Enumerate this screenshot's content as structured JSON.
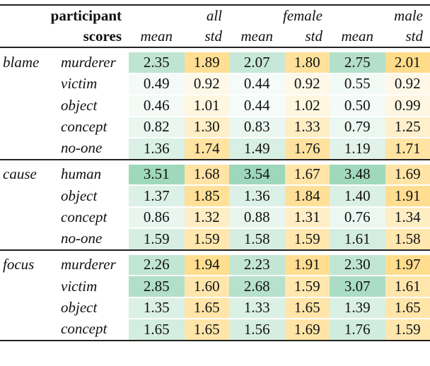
{
  "header": {
    "row1_label": "participant",
    "row2_label": "scores",
    "groups": [
      "all",
      "female",
      "male"
    ],
    "stat_labels": [
      "mean",
      "std"
    ]
  },
  "colors": {
    "mean_scale": "#8fd1b0",
    "std_scale": "#ffdc8a"
  },
  "sections": [
    {
      "label": "blame",
      "rows": [
        {
          "item": "murderer",
          "values": [
            "2.35",
            "1.89",
            "2.07",
            "1.80",
            "2.75",
            "2.01"
          ]
        },
        {
          "item": "victim",
          "values": [
            "0.49",
            "0.92",
            "0.44",
            "0.92",
            "0.55",
            "0.92"
          ]
        },
        {
          "item": "object",
          "values": [
            "0.46",
            "1.01",
            "0.44",
            "1.02",
            "0.50",
            "0.99"
          ]
        },
        {
          "item": "concept",
          "values": [
            "0.82",
            "1.30",
            "0.83",
            "1.33",
            "0.79",
            "1.25"
          ]
        },
        {
          "item": "no-one",
          "values": [
            "1.36",
            "1.74",
            "1.49",
            "1.76",
            "1.19",
            "1.71"
          ]
        }
      ]
    },
    {
      "label": "cause",
      "rows": [
        {
          "item": "human",
          "values": [
            "3.51",
            "1.68",
            "3.54",
            "1.67",
            "3.48",
            "1.69"
          ]
        },
        {
          "item": "object",
          "values": [
            "1.37",
            "1.85",
            "1.36",
            "1.84",
            "1.40",
            "1.91"
          ]
        },
        {
          "item": "concept",
          "values": [
            "0.86",
            "1.32",
            "0.88",
            "1.31",
            "0.76",
            "1.34"
          ]
        },
        {
          "item": "no-one",
          "values": [
            "1.59",
            "1.59",
            "1.58",
            "1.59",
            "1.61",
            "1.58"
          ]
        }
      ]
    },
    {
      "label": "focus",
      "rows": [
        {
          "item": "murderer",
          "values": [
            "2.26",
            "1.94",
            "2.23",
            "1.91",
            "2.30",
            "1.97"
          ]
        },
        {
          "item": "victim",
          "values": [
            "2.85",
            "1.60",
            "2.68",
            "1.59",
            "3.07",
            "1.61"
          ]
        },
        {
          "item": "object",
          "values": [
            "1.35",
            "1.65",
            "1.33",
            "1.65",
            "1.39",
            "1.65"
          ]
        },
        {
          "item": "concept",
          "values": [
            "1.65",
            "1.65",
            "1.56",
            "1.69",
            "1.76",
            "1.59"
          ]
        }
      ]
    }
  ]
}
